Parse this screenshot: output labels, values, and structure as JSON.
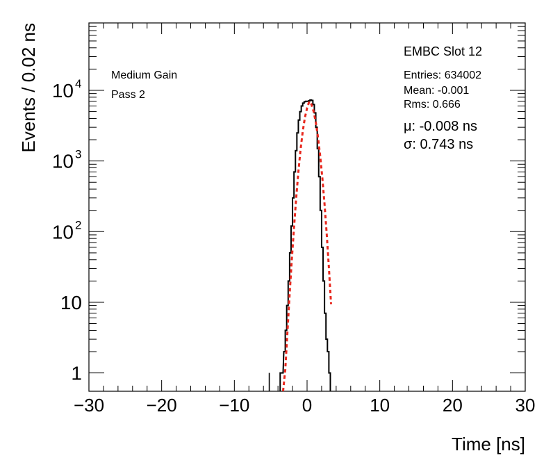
{
  "chart_data": {
    "type": "line",
    "title": "",
    "xlabel": "Time [ns]",
    "ylabel": "Events / 0.02 ns",
    "xlim": [
      -30,
      30
    ],
    "ylim": [
      0.55,
      90000
    ],
    "y_scale": "log",
    "x_ticks": [
      -30,
      -20,
      -10,
      0,
      10,
      20,
      30
    ],
    "x_tick_labels": [
      "−30",
      "−20",
      "−10",
      "0",
      "10",
      "20",
      "30"
    ],
    "y_ticks": [
      {
        "value": 1,
        "label": "1"
      },
      {
        "value": 10,
        "label": "10"
      },
      {
        "value": 100,
        "label": "10",
        "exp": "2"
      },
      {
        "value": 1000,
        "label": "10",
        "exp": "3"
      },
      {
        "value": 10000,
        "label": "10",
        "exp": "4"
      }
    ],
    "grid": false,
    "annotations": {
      "gain": "Medium Gain",
      "pass": "Pass 2",
      "slot": "EMBC Slot 12",
      "entries": "Entries: 634002",
      "mean": "Mean: -0.001",
      "rms": "Rms: 0.666",
      "mu": "μ: -0.008 ns",
      "sigma": "σ: 0.743 ns"
    },
    "series": [
      {
        "style": "histogram",
        "color": "#000000",
        "x": [
          -5.2,
          -3.6,
          -3.4,
          -3.1,
          -2.9,
          -2.7,
          -2.5,
          -2.3,
          -2.1,
          -1.9,
          -1.7,
          -1.5,
          -1.3,
          -1.1,
          -0.9,
          -0.7,
          -0.5,
          -0.3,
          -0.1,
          0.1,
          0.3,
          0.5,
          0.7,
          0.9,
          1.1,
          1.3,
          1.5,
          1.7,
          1.9,
          2.1,
          2.3,
          2.5,
          2.7,
          2.9,
          3.1
        ],
        "y": [
          1,
          1,
          1,
          2,
          4,
          9,
          20,
          50,
          120,
          300,
          700,
          1400,
          2500,
          3800,
          5000,
          6000,
          6600,
          6900,
          7000,
          7000,
          7100,
          7300,
          7200,
          6300,
          4800,
          3000,
          1500,
          600,
          200,
          60,
          20,
          7,
          3,
          2,
          1
        ]
      },
      {
        "style": "fit",
        "color": "#e8281e",
        "x": [
          -3.3,
          -3.0,
          -2.7,
          -2.4,
          -2.1,
          -1.8,
          -1.5,
          -1.2,
          -0.9,
          -0.6,
          -0.3,
          0.0,
          0.3,
          0.6,
          0.9,
          1.2,
          1.5,
          1.8,
          2.1,
          2.4,
          2.7,
          3.0,
          3.3
        ],
        "y": [
          0.35,
          1.1,
          3.8,
          13,
          40,
          113,
          296,
          697,
          1440,
          2600,
          4110,
          5620,
          6960,
          6320,
          5040,
          3520,
          2180,
          1190,
          575,
          247,
          93,
          31,
          9.4
        ]
      }
    ]
  }
}
